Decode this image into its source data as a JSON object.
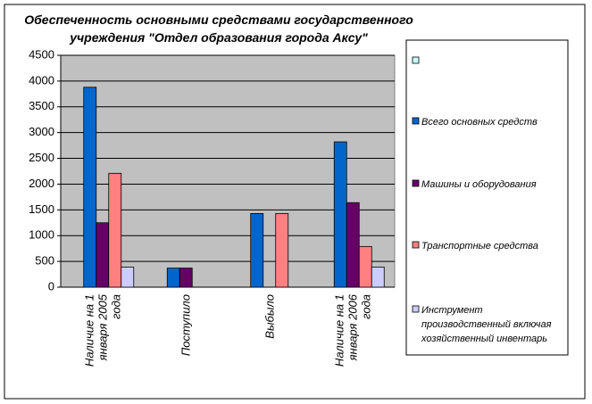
{
  "chart_data": {
    "type": "bar",
    "title": "Обеспеченность основными средствами государственного учреждения \"Отдел образования города Аксу\"",
    "categories": [
      "Наличие на 1 января 2005 года",
      "Поступило",
      "Выбыло",
      "Наличие на 1 января 2006 года"
    ],
    "series": [
      {
        "name": null,
        "color": "#ccffff",
        "values": [
          null,
          null,
          null,
          null
        ]
      },
      {
        "name": "Всего основных средств",
        "color": "#0066cc",
        "values": [
          3880,
          370,
          1430,
          2820
        ]
      },
      {
        "name": "Машины и оборудования",
        "color": "#660066",
        "values": [
          1250,
          370,
          null,
          1640
        ]
      },
      {
        "name": "Транспортные средства",
        "color": "#ff8080",
        "values": [
          2210,
          null,
          1430,
          790
        ]
      },
      {
        "name": "Инструмент производственный включая хозяйственный инвентарь",
        "color": "#ccccff",
        "values": [
          390,
          null,
          null,
          390
        ]
      }
    ],
    "ylim": [
      0,
      4500
    ],
    "yticks": [
      0,
      500,
      1000,
      1500,
      2000,
      2500,
      3000,
      3500,
      4000,
      4500
    ],
    "grid": true,
    "legend": "right"
  }
}
